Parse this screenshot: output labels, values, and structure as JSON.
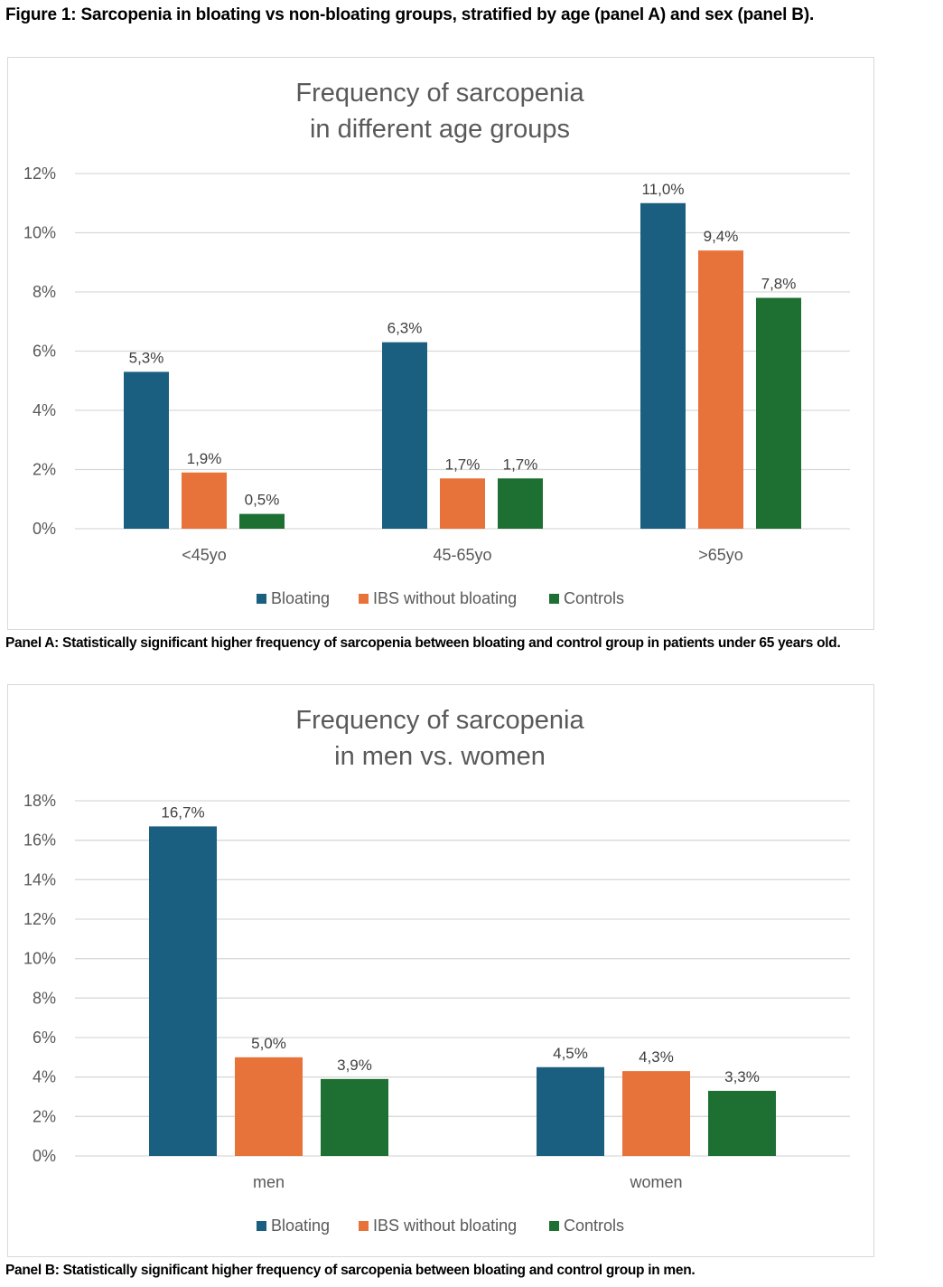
{
  "figure_title": "Figure 1: Sarcopenia in bloating vs non-bloating groups, stratified by age (panel A) and sex (panel B).",
  "panel_a_caption": "Panel A: Statistically significant higher frequency of sarcopenia between bloating and control group in patients under 65 years old.",
  "panel_b_caption": "Panel B: Statistically significant higher frequency of sarcopenia between bloating and control group in men.",
  "chart_data": [
    {
      "type": "bar",
      "title": [
        "Frequency of sarcopenia",
        "in different age groups"
      ],
      "categories": [
        "<45yo",
        "45-65yo",
        ">65yo"
      ],
      "series": [
        {
          "name": "Bloating",
          "color": "#1a5f7f",
          "values": [
            5.3,
            6.3,
            11.0
          ],
          "labels": [
            "5,3%",
            "6,3%",
            "11,0%"
          ]
        },
        {
          "name": "IBS without bloating",
          "color": "#e8733a",
          "values": [
            1.9,
            1.7,
            9.4
          ],
          "labels": [
            "1,9%",
            "1,7%",
            "9,4%"
          ]
        },
        {
          "name": "Controls",
          "color": "#1e6f32",
          "values": [
            0.5,
            1.7,
            7.8
          ],
          "labels": [
            "0,5%",
            "1,7%",
            "7,8%"
          ]
        }
      ],
      "ylim": [
        0,
        12
      ],
      "yticks": [
        0,
        2,
        4,
        6,
        8,
        10,
        12
      ],
      "ytick_labels": [
        "0%",
        "2%",
        "4%",
        "6%",
        "8%",
        "10%",
        "12%"
      ],
      "xlabel": "",
      "ylabel": "",
      "grid": true,
      "legend": "bottom"
    },
    {
      "type": "bar",
      "title": [
        "Frequency of sarcopenia",
        "in men vs. women"
      ],
      "categories": [
        "men",
        "women"
      ],
      "series": [
        {
          "name": "Bloating",
          "color": "#1a5f7f",
          "values": [
            16.7,
            4.5
          ],
          "labels": [
            "16,7%",
            "4,5%"
          ]
        },
        {
          "name": "IBS without bloating",
          "color": "#e8733a",
          "values": [
            5.0,
            4.3
          ],
          "labels": [
            "5,0%",
            "4,3%"
          ]
        },
        {
          "name": "Controls",
          "color": "#1e6f32",
          "values": [
            3.9,
            3.3
          ],
          "labels": [
            "3,9%",
            "3,3%"
          ]
        }
      ],
      "ylim": [
        0,
        18
      ],
      "yticks": [
        0,
        2,
        4,
        6,
        8,
        10,
        12,
        14,
        16,
        18
      ],
      "ytick_labels": [
        "0%",
        "2%",
        "4%",
        "6%",
        "8%",
        "10%",
        "12%",
        "14%",
        "16%",
        "18%"
      ],
      "xlabel": "",
      "ylabel": "",
      "grid": true,
      "legend": "bottom"
    }
  ]
}
